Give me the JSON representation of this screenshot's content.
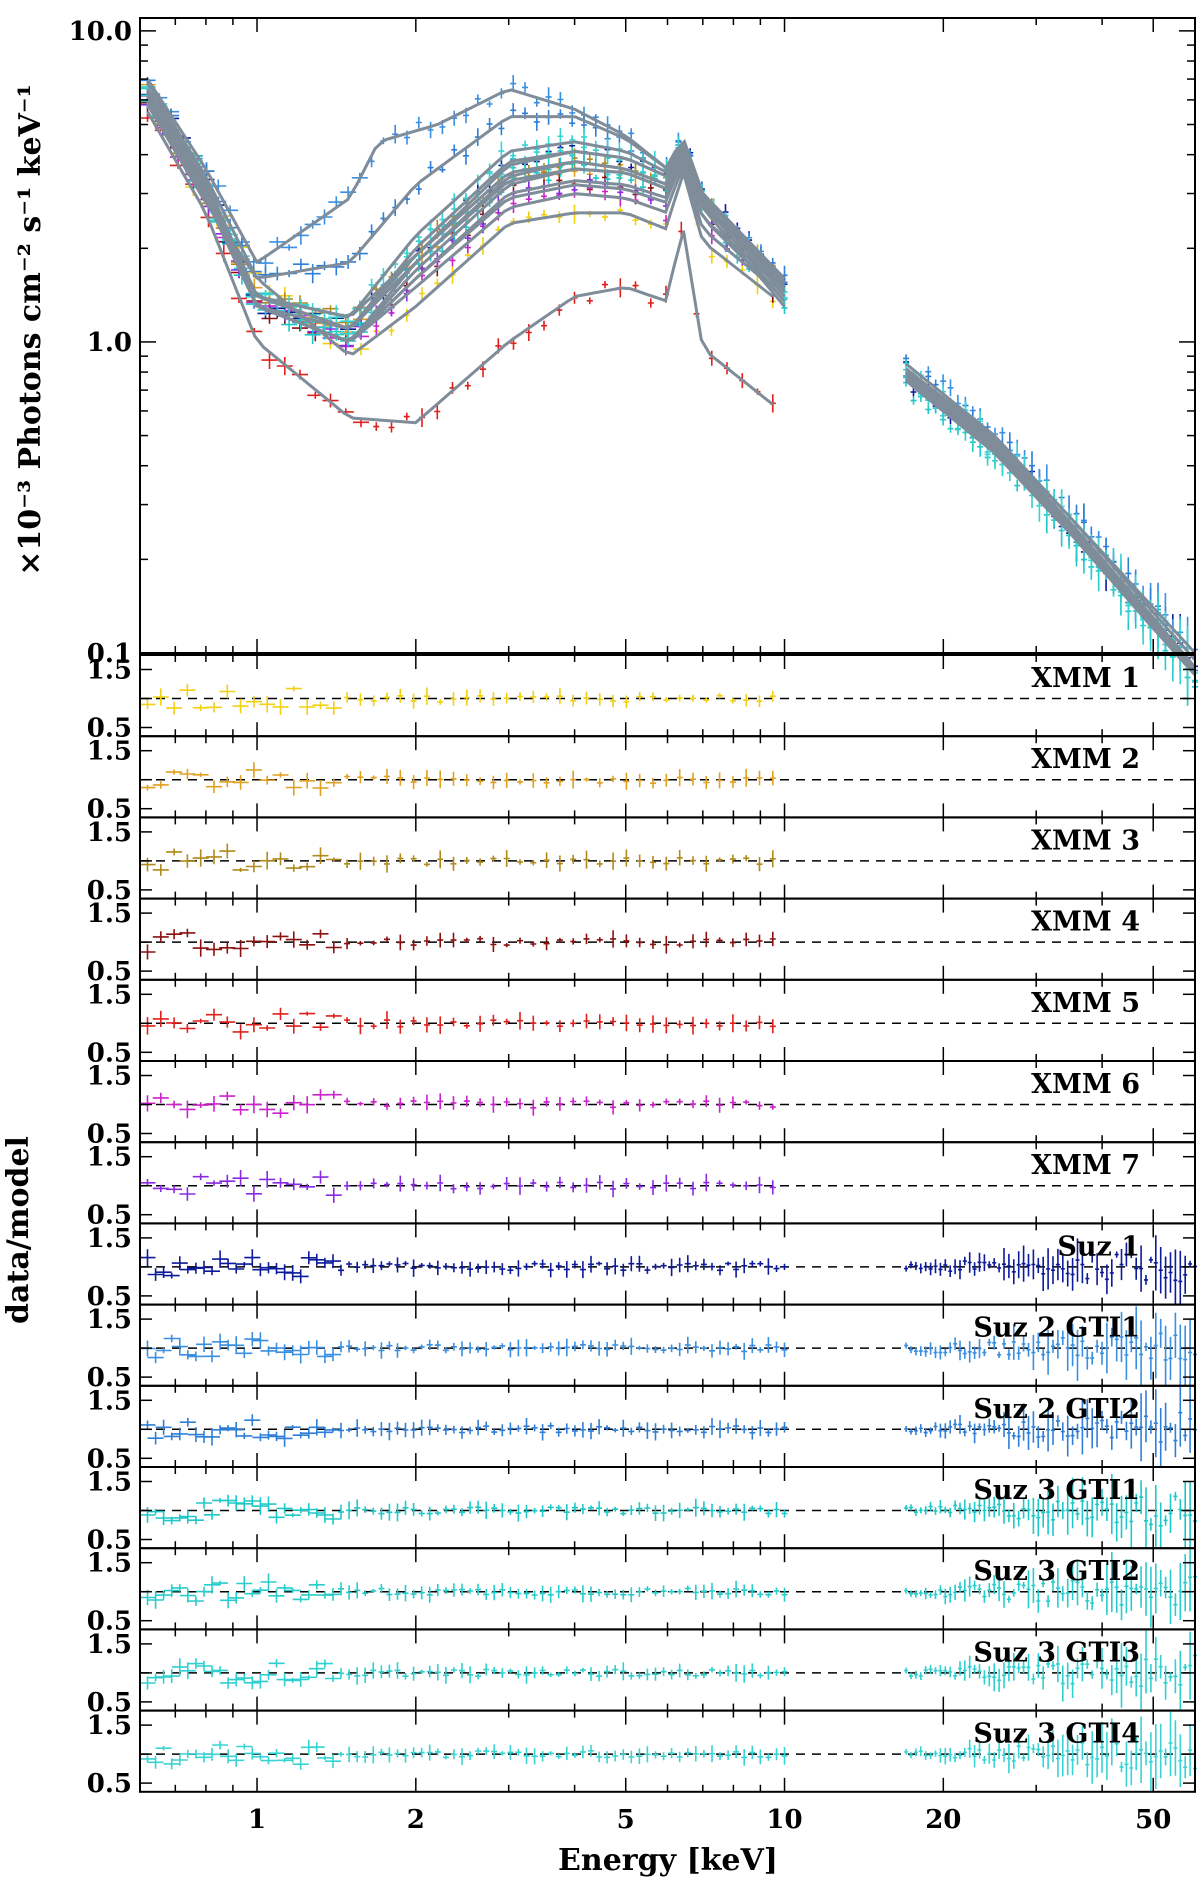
{
  "chart_data": {
    "type": "scatter",
    "description": "Unfolded X-ray spectra with folded model (top) and data/model ratio panels",
    "title": "",
    "xlabel": "Energy [keV]",
    "ylabel_main": "×10⁻³ Photons cm⁻² s⁻¹ keV⁻¹",
    "ylabel_ratio": "data/model",
    "x_scale": "log",
    "xlim": [
      0.6,
      60
    ],
    "x_tick_labels": [
      {
        "value": 1,
        "label": "1"
      },
      {
        "value": 2,
        "label": "2"
      },
      {
        "value": 5,
        "label": "5"
      },
      {
        "value": 10,
        "label": "10"
      },
      {
        "value": 20,
        "label": "20"
      },
      {
        "value": 50,
        "label": "50"
      }
    ],
    "main": {
      "y_scale": "log",
      "ylim": [
        0.1,
        11
      ],
      "y_tick_labels": [
        {
          "value": 0.1,
          "label": "0.1"
        },
        {
          "value": 1,
          "label": "1.0"
        },
        {
          "value": 10,
          "label": "10.0"
        }
      ]
    },
    "ratio": {
      "ylim": [
        0.35,
        1.75
      ],
      "y_tick_labels": [
        {
          "value": 0.5,
          "label": "0.5"
        },
        {
          "value": 1.5,
          "label": "1.5"
        }
      ],
      "reference_line": 1.0
    },
    "series": [
      {
        "name": "XMM 1",
        "color": "#f2d012",
        "instrument": "xmm",
        "spectrum": [
          [
            0.62,
            5.8
          ],
          [
            0.8,
            2.8
          ],
          [
            1.0,
            1.6
          ],
          [
            1.5,
            0.9
          ],
          [
            2.0,
            1.3
          ],
          [
            3.0,
            2.4
          ],
          [
            4.0,
            2.6
          ],
          [
            5.0,
            2.6
          ],
          [
            6.0,
            2.3
          ],
          [
            6.4,
            3.6
          ],
          [
            7.0,
            2.1
          ],
          [
            9.5,
            1.4
          ]
        ]
      },
      {
        "name": "XMM 2",
        "color": "#e0a020",
        "instrument": "xmm",
        "spectrum": [
          [
            0.62,
            6.4
          ],
          [
            0.8,
            3.2
          ],
          [
            1.0,
            1.4
          ],
          [
            1.5,
            1.1
          ],
          [
            2.0,
            1.8
          ],
          [
            3.0,
            3.3
          ],
          [
            4.0,
            3.6
          ],
          [
            5.0,
            3.5
          ],
          [
            6.0,
            3.1
          ],
          [
            6.4,
            4.3
          ],
          [
            7.0,
            2.7
          ],
          [
            9.5,
            1.7
          ]
        ]
      },
      {
        "name": "XMM 3",
        "color": "#b08a1a",
        "instrument": "xmm",
        "spectrum": [
          [
            0.62,
            6.2
          ],
          [
            0.8,
            3.0
          ],
          [
            1.0,
            1.4
          ],
          [
            1.5,
            1.2
          ],
          [
            2.0,
            1.9
          ],
          [
            3.0,
            3.5
          ],
          [
            4.0,
            3.8
          ],
          [
            5.0,
            3.6
          ],
          [
            6.0,
            3.2
          ],
          [
            6.4,
            4.4
          ],
          [
            7.0,
            2.8
          ],
          [
            9.5,
            1.7
          ]
        ]
      },
      {
        "name": "XMM 4",
        "color": "#8b1010",
        "instrument": "xmm",
        "spectrum": [
          [
            0.62,
            6.0
          ],
          [
            0.8,
            2.9
          ],
          [
            1.0,
            1.3
          ],
          [
            1.5,
            1.0
          ],
          [
            2.0,
            1.6
          ],
          [
            3.0,
            3.0
          ],
          [
            4.0,
            3.3
          ],
          [
            5.0,
            3.2
          ],
          [
            6.0,
            2.9
          ],
          [
            6.4,
            4.1
          ],
          [
            7.0,
            2.5
          ],
          [
            9.5,
            1.5
          ]
        ]
      },
      {
        "name": "XMM 5",
        "color": "#e0201c",
        "instrument": "xmm",
        "spectrum": [
          [
            0.62,
            5.5
          ],
          [
            0.8,
            2.6
          ],
          [
            1.0,
            1.0
          ],
          [
            1.5,
            0.57
          ],
          [
            2.0,
            0.55
          ],
          [
            3.0,
            1.0
          ],
          [
            4.0,
            1.4
          ],
          [
            5.0,
            1.5
          ],
          [
            6.0,
            1.35
          ],
          [
            6.4,
            2.4
          ],
          [
            7.0,
            0.95
          ],
          [
            9.5,
            0.63
          ]
        ]
      },
      {
        "name": "XMM 6",
        "color": "#cc22cc",
        "instrument": "xmm",
        "spectrum": [
          [
            0.62,
            6.0
          ],
          [
            0.8,
            2.9
          ],
          [
            1.0,
            1.3
          ],
          [
            1.5,
            1.0
          ],
          [
            2.0,
            1.5
          ],
          [
            3.0,
            2.7
          ],
          [
            4.0,
            3.0
          ],
          [
            5.0,
            2.9
          ],
          [
            6.0,
            2.6
          ],
          [
            6.4,
            3.8
          ],
          [
            7.0,
            2.3
          ],
          [
            9.5,
            1.5
          ]
        ]
      },
      {
        "name": "XMM 7",
        "color": "#8a2be2",
        "instrument": "xmm",
        "spectrum": [
          [
            0.62,
            6.1
          ],
          [
            0.8,
            3.0
          ],
          [
            1.0,
            1.3
          ],
          [
            1.5,
            1.0
          ],
          [
            2.0,
            1.6
          ],
          [
            3.0,
            2.9
          ],
          [
            4.0,
            3.2
          ],
          [
            5.0,
            3.1
          ],
          [
            6.0,
            2.8
          ],
          [
            6.4,
            4.0
          ],
          [
            7.0,
            2.5
          ],
          [
            9.5,
            1.6
          ]
        ]
      },
      {
        "name": "Suz 1",
        "color": "#0d1a9a",
        "instrument": "suzaku",
        "spectrum": [
          [
            0.62,
            6.5
          ],
          [
            0.8,
            3.3
          ],
          [
            1.0,
            1.3
          ],
          [
            1.5,
            1.1
          ],
          [
            2.0,
            1.9
          ],
          [
            3.0,
            3.7
          ],
          [
            4.0,
            4.1
          ],
          [
            5.0,
            3.9
          ],
          [
            6.0,
            3.4
          ],
          [
            6.4,
            4.5
          ],
          [
            7.0,
            3.0
          ],
          [
            10.0,
            1.5
          ]
        ],
        "hxd": [
          [
            17,
            0.8
          ],
          [
            25,
            0.48
          ],
          [
            35,
            0.26
          ],
          [
            50,
            0.13
          ],
          [
            60,
            0.09
          ]
        ]
      },
      {
        "name": "Suz 2 GTI1",
        "color": "#3a8fe0",
        "instrument": "suzaku",
        "spectrum": [
          [
            0.62,
            7.0
          ],
          [
            0.8,
            3.6
          ],
          [
            1.0,
            1.8
          ],
          [
            1.5,
            2.9
          ],
          [
            1.7,
            4.4
          ],
          [
            2.2,
            5.0
          ],
          [
            3.0,
            6.5
          ],
          [
            4.0,
            5.6
          ],
          [
            5.0,
            4.6
          ],
          [
            6.0,
            3.6
          ],
          [
            6.4,
            4.6
          ],
          [
            7.0,
            3.0
          ],
          [
            10.0,
            1.6
          ]
        ],
        "hxd": [
          [
            17,
            0.85
          ],
          [
            25,
            0.5
          ],
          [
            35,
            0.27
          ],
          [
            50,
            0.14
          ],
          [
            60,
            0.1
          ]
        ]
      },
      {
        "name": "Suz 2 GTI2",
        "color": "#2f7fd8",
        "instrument": "suzaku",
        "spectrum": [
          [
            0.62,
            6.8
          ],
          [
            0.8,
            3.4
          ],
          [
            1.0,
            1.6
          ],
          [
            1.5,
            1.8
          ],
          [
            2.0,
            3.2
          ],
          [
            3.0,
            5.3
          ],
          [
            4.0,
            5.3
          ],
          [
            5.0,
            4.5
          ],
          [
            6.0,
            3.6
          ],
          [
            6.4,
            4.6
          ],
          [
            7.0,
            3.0
          ],
          [
            10.0,
            1.55
          ]
        ],
        "hxd": [
          [
            17,
            0.82
          ],
          [
            25,
            0.49
          ],
          [
            35,
            0.27
          ],
          [
            50,
            0.135
          ],
          [
            60,
            0.095
          ]
        ]
      },
      {
        "name": "Suz 3 GTI1",
        "color": "#1ec8c8",
        "instrument": "suzaku",
        "spectrum": [
          [
            0.62,
            6.3
          ],
          [
            0.8,
            3.1
          ],
          [
            1.0,
            1.3
          ],
          [
            1.5,
            1.0
          ],
          [
            2.0,
            1.7
          ],
          [
            3.0,
            3.2
          ],
          [
            4.0,
            3.6
          ],
          [
            5.0,
            3.5
          ],
          [
            6.0,
            3.1
          ],
          [
            6.4,
            4.2
          ],
          [
            7.0,
            2.7
          ],
          [
            10.0,
            1.3
          ]
        ],
        "hxd": [
          [
            17,
            0.75
          ],
          [
            25,
            0.44
          ],
          [
            35,
            0.24
          ],
          [
            50,
            0.12
          ],
          [
            60,
            0.085
          ]
        ]
      },
      {
        "name": "Suz 3 GTI2",
        "color": "#28cccc",
        "instrument": "suzaku",
        "spectrum": [
          [
            0.62,
            6.2
          ],
          [
            0.8,
            3.0
          ],
          [
            1.0,
            1.3
          ],
          [
            1.5,
            1.0
          ],
          [
            2.0,
            1.8
          ],
          [
            3.0,
            3.4
          ],
          [
            4.0,
            3.8
          ],
          [
            5.0,
            3.6
          ],
          [
            6.0,
            3.2
          ],
          [
            6.4,
            4.3
          ],
          [
            7.0,
            2.8
          ],
          [
            10.0,
            1.35
          ]
        ],
        "hxd": [
          [
            17,
            0.76
          ],
          [
            25,
            0.45
          ],
          [
            35,
            0.245
          ],
          [
            50,
            0.122
          ],
          [
            60,
            0.087
          ]
        ]
      },
      {
        "name": "Suz 3 GTI3",
        "color": "#30d0d0",
        "instrument": "suzaku",
        "spectrum": [
          [
            0.62,
            6.4
          ],
          [
            0.8,
            3.2
          ],
          [
            1.0,
            1.4
          ],
          [
            1.5,
            1.1
          ],
          [
            2.0,
            2.0
          ],
          [
            3.0,
            3.8
          ],
          [
            4.0,
            4.1
          ],
          [
            5.0,
            3.9
          ],
          [
            6.0,
            3.4
          ],
          [
            6.4,
            4.4
          ],
          [
            7.0,
            2.9
          ],
          [
            10.0,
            1.4
          ]
        ],
        "hxd": [
          [
            17,
            0.78
          ],
          [
            25,
            0.46
          ],
          [
            35,
            0.25
          ],
          [
            50,
            0.125
          ],
          [
            60,
            0.088
          ]
        ]
      },
      {
        "name": "Suz 3 GTI4",
        "color": "#38d4d4",
        "instrument": "suzaku",
        "spectrum": [
          [
            0.62,
            6.5
          ],
          [
            0.8,
            3.3
          ],
          [
            1.0,
            1.4
          ],
          [
            1.5,
            1.2
          ],
          [
            2.0,
            2.2
          ],
          [
            3.0,
            4.1
          ],
          [
            4.0,
            4.4
          ],
          [
            5.0,
            4.1
          ],
          [
            6.0,
            3.5
          ],
          [
            6.4,
            4.5
          ],
          [
            7.0,
            3.0
          ],
          [
            10.0,
            1.45
          ]
        ],
        "hxd": [
          [
            17,
            0.8
          ],
          [
            25,
            0.47
          ],
          [
            35,
            0.255
          ],
          [
            50,
            0.128
          ],
          [
            60,
            0.09
          ]
        ]
      }
    ],
    "model_color": "#7f8c99",
    "panel_labels": [
      "XMM 1",
      "XMM 2",
      "XMM 3",
      "XMM 4",
      "XMM 5",
      "XMM 6",
      "XMM 7",
      "Suz 1",
      "Suz 2 GTI1",
      "Suz 2 GTI2",
      "Suz 3 GTI1",
      "Suz 3 GTI2",
      "Suz 3 GTI3",
      "Suz 3 GTI4"
    ]
  }
}
